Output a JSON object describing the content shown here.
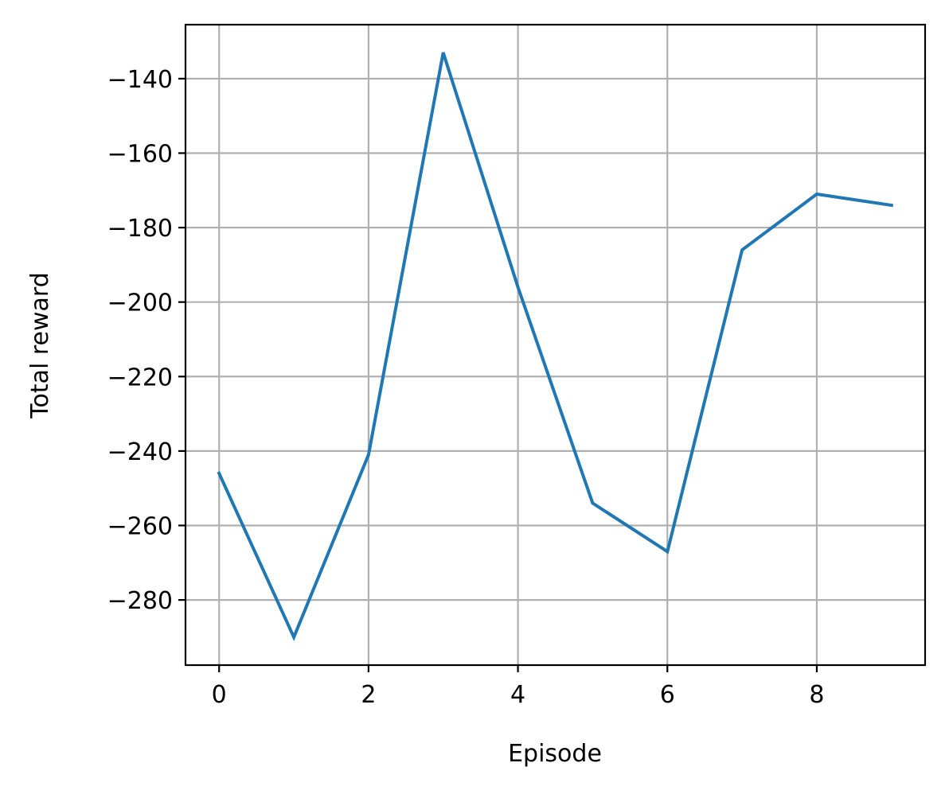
{
  "chart_data": {
    "type": "line",
    "title": "",
    "xlabel": "Episode",
    "ylabel": "Total reward",
    "xlim": [
      -0.45,
      9.45
    ],
    "ylim": [
      -297.5,
      -125.5
    ],
    "xticks": [
      0,
      2,
      4,
      6,
      8
    ],
    "xtick_labels": [
      "0",
      "2",
      "4",
      "6",
      "8"
    ],
    "yticks": [
      -140,
      -160,
      -180,
      -200,
      -220,
      -240,
      -260,
      -280
    ],
    "ytick_labels": [
      "−140",
      "−160",
      "−180",
      "−200",
      "−220",
      "−240",
      "−260",
      "−280"
    ],
    "grid": true,
    "legend": "none",
    "series": [
      {
        "x": [
          0,
          1,
          2,
          3,
          4,
          5,
          6,
          7,
          8,
          9
        ],
        "values": [
          -246,
          -290,
          -241,
          -133,
          -196,
          -254,
          -267,
          -186,
          -171,
          -174
        ],
        "color": "#1f77b4"
      }
    ]
  }
}
